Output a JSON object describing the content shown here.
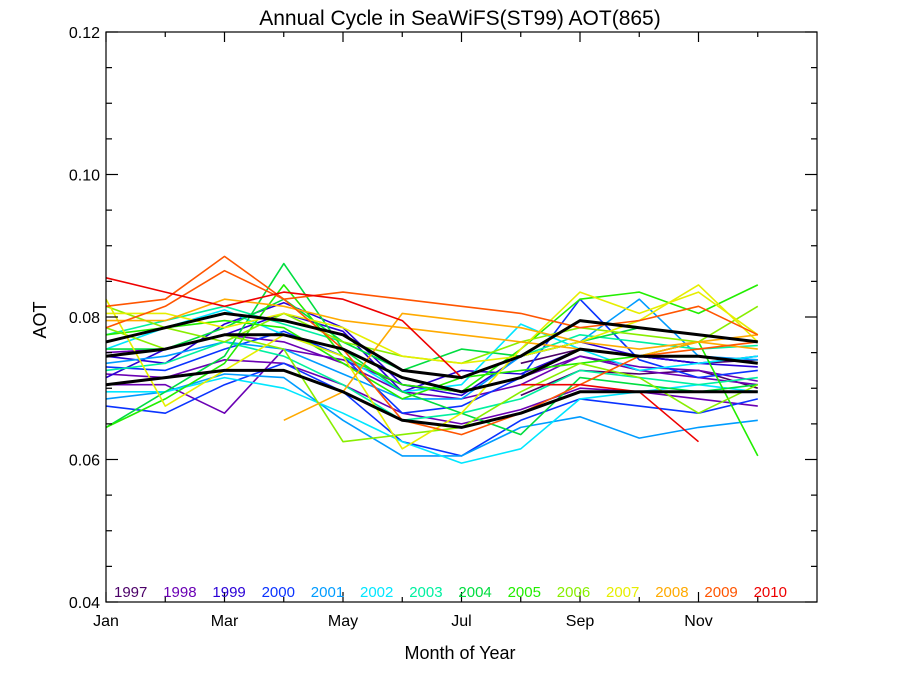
{
  "chart_data": {
    "type": "line",
    "title": "Annual Cycle in SeaWiFS(ST99) AOT(865)",
    "xlabel": "Month of Year",
    "ylabel": "AOT",
    "xlim": [
      1,
      13
    ],
    "ylim": [
      0.04,
      0.12
    ],
    "x_ticks": [
      {
        "x": 1,
        "label": "Jan"
      },
      {
        "x": 3,
        "label": "Mar"
      },
      {
        "x": 5,
        "label": "May"
      },
      {
        "x": 7,
        "label": "Jul"
      },
      {
        "x": 9,
        "label": "Sep"
      },
      {
        "x": 11,
        "label": "Nov"
      }
    ],
    "y_ticks": [
      {
        "y": 0.04,
        "label": "0.04"
      },
      {
        "y": 0.06,
        "label": "0.06"
      },
      {
        "y": 0.08,
        "label": "0.08"
      },
      {
        "y": 0.1,
        "label": "0.10"
      },
      {
        "y": 0.12,
        "label": "0.12"
      }
    ],
    "y_minor_step": 0.005,
    "grid": false,
    "legend_placement": "bottom, inside plot",
    "series": [
      {
        "name": "1997",
        "color": "#4b0068",
        "x": [
          8,
          9,
          10,
          11,
          12
        ],
        "values": [
          0.0735,
          0.0755,
          0.0745,
          0.0735,
          0.074
        ]
      },
      {
        "name": "1997",
        "color": "#4b0068",
        "x": [
          8,
          9,
          10,
          11,
          12
        ],
        "values": [
          0.069,
          0.0725,
          0.072,
          0.0725,
          0.07
        ]
      },
      {
        "name": "1998",
        "color": "#6a00b4",
        "x": [
          1,
          2,
          3,
          4,
          5,
          6,
          7,
          8,
          9,
          10,
          11,
          12
        ],
        "values": [
          0.0705,
          0.0705,
          0.0665,
          0.0755,
          0.074,
          0.0705,
          0.0695,
          0.0715,
          0.0745,
          0.0725,
          0.0715,
          0.0705
        ]
      },
      {
        "name": "1998",
        "color": "#6a00b4",
        "x": [
          1,
          2,
          3,
          4,
          5,
          6,
          7,
          8,
          9,
          10,
          11,
          12
        ],
        "values": [
          0.075,
          0.0755,
          0.0775,
          0.0765,
          0.0735,
          0.0695,
          0.0685,
          0.0705,
          0.0745,
          0.073,
          0.0725,
          0.071
        ]
      },
      {
        "name": "1998",
        "color": "#6a00b4",
        "x": [
          1,
          2,
          3,
          4,
          5,
          6,
          7,
          8,
          9,
          10,
          11,
          12
        ],
        "values": [
          0.072,
          0.0715,
          0.074,
          0.0735,
          0.0705,
          0.0665,
          0.065,
          0.067,
          0.07,
          0.0695,
          0.0685,
          0.0675
        ]
      },
      {
        "name": "1999",
        "color": "#2a00d6",
        "x": [
          1,
          2,
          3,
          4,
          5,
          6,
          7,
          8,
          9,
          10,
          11,
          12
        ],
        "values": [
          0.0715,
          0.0755,
          0.0775,
          0.0805,
          0.078,
          0.0695,
          0.0725,
          0.072,
          0.0755,
          0.0745,
          0.0735,
          0.0745
        ]
      },
      {
        "name": "1999",
        "color": "#2a00d6",
        "x": [
          1,
          2,
          3,
          4,
          5,
          6,
          7,
          8,
          9,
          10,
          11,
          12
        ],
        "values": [
          0.0745,
          0.0735,
          0.079,
          0.082,
          0.0785,
          0.0705,
          0.069,
          0.0745,
          0.0765,
          0.0745,
          0.0735,
          0.073
        ]
      },
      {
        "name": "2000",
        "color": "#0a33ff",
        "x": [
          1,
          2,
          3,
          4,
          5,
          6,
          7,
          8,
          9,
          10,
          11,
          12
        ],
        "values": [
          0.0675,
          0.0665,
          0.0705,
          0.0735,
          0.0695,
          0.0625,
          0.0605,
          0.0655,
          0.0685,
          0.0675,
          0.0665,
          0.0685
        ]
      },
      {
        "name": "2000",
        "color": "#0a33ff",
        "x": [
          1,
          2,
          3,
          4,
          5,
          6,
          7,
          8,
          9,
          10,
          11,
          12
        ],
        "values": [
          0.073,
          0.0725,
          0.0755,
          0.078,
          0.0745,
          0.0665,
          0.0675,
          0.0715,
          0.0825,
          0.074,
          0.0715,
          0.0725
        ]
      },
      {
        "name": "2001",
        "color": "#009cff",
        "x": [
          1,
          2,
          3,
          4,
          5,
          6,
          7,
          8,
          9,
          10,
          11,
          12
        ],
        "values": [
          0.0685,
          0.0695,
          0.072,
          0.0715,
          0.0655,
          0.0605,
          0.0605,
          0.0645,
          0.066,
          0.063,
          0.0645,
          0.0655
        ]
      },
      {
        "name": "2001",
        "color": "#009cff",
        "x": [
          1,
          2,
          3,
          4,
          5,
          6,
          7,
          8,
          9,
          10,
          11,
          12
        ],
        "values": [
          0.0735,
          0.0745,
          0.0765,
          0.0755,
          0.072,
          0.0685,
          0.0685,
          0.0745,
          0.0765,
          0.0825,
          0.0745,
          0.074
        ]
      },
      {
        "name": "2002",
        "color": "#00e6ff",
        "x": [
          1,
          2,
          3,
          4,
          5,
          6,
          7,
          8,
          9,
          10,
          11,
          12
        ],
        "values": [
          0.0695,
          0.0695,
          0.0715,
          0.07,
          0.0665,
          0.0625,
          0.0595,
          0.0615,
          0.0685,
          0.0695,
          0.0705,
          0.0695
        ]
      },
      {
        "name": "2002",
        "color": "#00e6ff",
        "x": [
          1,
          2,
          3,
          4,
          5,
          6,
          7,
          8,
          9,
          10,
          11,
          12
        ],
        "values": [
          0.0755,
          0.0785,
          0.081,
          0.0775,
          0.0745,
          0.0695,
          0.0705,
          0.079,
          0.0755,
          0.0725,
          0.0735,
          0.0745
        ]
      },
      {
        "name": "2003",
        "color": "#00f0a0",
        "x": [
          1,
          2,
          3,
          4,
          5,
          6,
          7,
          8,
          9,
          10,
          11,
          12
        ],
        "values": [
          0.0725,
          0.0735,
          0.0765,
          0.0745,
          0.0705,
          0.0655,
          0.0665,
          0.0685,
          0.0725,
          0.0715,
          0.0705,
          0.0715
        ]
      },
      {
        "name": "2003",
        "color": "#00f0a0",
        "x": [
          1,
          2,
          3,
          4,
          5,
          6,
          7,
          8,
          9,
          10,
          11,
          12
        ],
        "values": [
          0.0775,
          0.0795,
          0.0815,
          0.079,
          0.0765,
          0.0725,
          0.0715,
          0.0745,
          0.0775,
          0.0765,
          0.0755,
          0.076
        ]
      },
      {
        "name": "2004",
        "color": "#00dd40",
        "x": [
          1,
          2,
          3,
          4,
          5,
          6,
          7,
          8,
          9,
          10,
          11,
          12
        ],
        "values": [
          0.0645,
          0.0695,
          0.0745,
          0.0875,
          0.0755,
          0.0695,
          0.0665,
          0.0635,
          0.0715,
          0.0705,
          0.0695,
          0.0705
        ]
      },
      {
        "name": "2004",
        "color": "#00dd40",
        "x": [
          1,
          2,
          3,
          4,
          5,
          6,
          7,
          8,
          9,
          10,
          11,
          12
        ],
        "values": [
          0.0755,
          0.0755,
          0.0785,
          0.0825,
          0.0765,
          0.0725,
          0.0755,
          0.0745,
          0.0765,
          0.0785,
          0.0775,
          0.0765
        ]
      },
      {
        "name": "2005",
        "color": "#22ee00",
        "x": [
          1,
          2,
          3,
          4,
          5,
          6,
          7,
          8,
          9,
          10,
          11,
          12
        ],
        "values": [
          0.0645,
          0.0685,
          0.0735,
          0.0845,
          0.0745,
          0.0705,
          0.0695,
          0.0755,
          0.0825,
          0.0835,
          0.0805,
          0.0845
        ]
      },
      {
        "name": "2005",
        "color": "#22ee00",
        "x": [
          1,
          2,
          3,
          4,
          5,
          6,
          7,
          8,
          9,
          10,
          11,
          12
        ],
        "values": [
          0.0775,
          0.0785,
          0.0795,
          0.0785,
          0.0735,
          0.0685,
          0.0715,
          0.0725,
          0.0735,
          0.0745,
          0.0765,
          0.0605
        ]
      },
      {
        "name": "2006",
        "color": "#88ee00",
        "x": [
          1,
          2,
          3,
          4,
          5,
          6,
          7,
          8,
          9,
          10,
          11,
          12
        ],
        "values": [
          0.0785,
          0.0755,
          0.0775,
          0.0755,
          0.0625,
          0.0635,
          0.0645,
          0.0695,
          0.0735,
          0.0715,
          0.0665,
          0.0705
        ]
      },
      {
        "name": "2006",
        "color": "#88ee00",
        "x": [
          1,
          2,
          3,
          4,
          5,
          6,
          7,
          8,
          9,
          10,
          11,
          12
        ],
        "values": [
          0.0815,
          0.0785,
          0.0765,
          0.0805,
          0.0765,
          0.0745,
          0.0735,
          0.0765,
          0.0785,
          0.0775,
          0.0765,
          0.0815
        ]
      },
      {
        "name": "2007",
        "color": "#e6ee00",
        "x": [
          1,
          2,
          3,
          4,
          5,
          6,
          7,
          8,
          9,
          10,
          11,
          12
        ],
        "values": [
          0.0825,
          0.0675,
          0.0725,
          0.0775,
          0.0745,
          0.0615,
          0.0665,
          0.0755,
          0.0835,
          0.0805,
          0.0835,
          0.0775
        ]
      },
      {
        "name": "2007",
        "color": "#e6ee00",
        "x": [
          1,
          2,
          3,
          4,
          5,
          6,
          7,
          8,
          9,
          10,
          11,
          12
        ],
        "values": [
          0.0805,
          0.0805,
          0.0785,
          0.0805,
          0.0785,
          0.0745,
          0.0735,
          0.0745,
          0.0765,
          0.0795,
          0.0845,
          0.0765
        ]
      },
      {
        "name": "2008",
        "color": "#ffaa00",
        "x": [
          4,
          5,
          6,
          7,
          8,
          9,
          10,
          11,
          12
        ],
        "values": [
          0.0655,
          0.0695,
          0.0805,
          0.0795,
          0.0785,
          0.0765,
          0.0755,
          0.0765,
          0.0755
        ]
      },
      {
        "name": "2008",
        "color": "#ffaa00",
        "x": [
          1,
          2,
          3,
          4,
          5,
          6,
          7,
          8,
          9,
          10,
          11,
          12
        ],
        "values": [
          0.0795,
          0.0795,
          0.0825,
          0.0815,
          0.0795,
          0.0785,
          0.0775,
          0.0765,
          0.0755,
          0.0745,
          0.0765,
          0.0775
        ]
      },
      {
        "name": "2009",
        "color": "#ff5500",
        "x": [
          1,
          2,
          3,
          4,
          5,
          6,
          7,
          8,
          9,
          10,
          11,
          12
        ],
        "values": [
          0.0815,
          0.0825,
          0.0885,
          0.0825,
          0.0835,
          0.0825,
          0.0815,
          0.0805,
          0.0785,
          0.0795,
          0.0815,
          0.0775
        ]
      },
      {
        "name": "2009",
        "color": "#ff5500",
        "x": [
          1,
          2,
          3,
          4,
          5,
          6,
          7,
          8,
          9,
          10,
          11,
          12
        ],
        "values": [
          0.0785,
          0.0815,
          0.0865,
          0.0825,
          0.0755,
          0.0655,
          0.0635,
          0.0665,
          0.0705,
          0.0745,
          0.0755,
          0.0765
        ]
      },
      {
        "name": "2010",
        "color": "#ee0000",
        "x": [
          1,
          2,
          3,
          4,
          5,
          6,
          7
        ],
        "values": [
          0.0855,
          0.0835,
          0.0815,
          0.0835,
          0.0825,
          0.0795,
          0.0715
        ]
      },
      {
        "name": "2010",
        "color": "#ee0000",
        "x": [
          8,
          9,
          10,
          11
        ],
        "values": [
          0.0705,
          0.0705,
          0.0695,
          0.0625
        ]
      },
      {
        "name": "",
        "color": "#000000",
        "width": 3,
        "x": [
          1,
          2,
          3,
          4,
          5,
          6,
          7,
          8,
          9,
          10,
          11,
          12
        ],
        "values": [
          0.0765,
          0.0785,
          0.0805,
          0.0795,
          0.0775,
          0.0725,
          0.0715,
          0.0745,
          0.0795,
          0.0785,
          0.0775,
          0.0765
        ]
      },
      {
        "name": "",
        "color": "#000000",
        "width": 3,
        "x": [
          1,
          2,
          3,
          4,
          5,
          6,
          7,
          8,
          9,
          10,
          11,
          12
        ],
        "values": [
          0.0745,
          0.0755,
          0.0775,
          0.0775,
          0.0755,
          0.0715,
          0.0695,
          0.0715,
          0.0755,
          0.0745,
          0.0745,
          0.0735
        ]
      },
      {
        "name": "",
        "color": "#000000",
        "width": 3,
        "x": [
          1,
          2,
          3,
          4,
          5,
          6,
          7,
          8,
          9,
          10,
          11,
          12
        ],
        "values": [
          0.0705,
          0.0715,
          0.0725,
          0.0725,
          0.0695,
          0.0655,
          0.0645,
          0.0665,
          0.0695,
          0.0695,
          0.0695,
          0.0695
        ]
      }
    ],
    "legend": [
      {
        "label": "1997",
        "color": "#4b0068"
      },
      {
        "label": "1998",
        "color": "#6a00b4"
      },
      {
        "label": "1999",
        "color": "#2a00d6"
      },
      {
        "label": "2000",
        "color": "#0a33ff"
      },
      {
        "label": "2001",
        "color": "#009cff"
      },
      {
        "label": "2002",
        "color": "#00e6ff"
      },
      {
        "label": "2003",
        "color": "#00f0a0"
      },
      {
        "label": "2004",
        "color": "#00dd40"
      },
      {
        "label": "2005",
        "color": "#22ee00"
      },
      {
        "label": "2006",
        "color": "#88ee00"
      },
      {
        "label": "2007",
        "color": "#e6ee00"
      },
      {
        "label": "2008",
        "color": "#ffaa00"
      },
      {
        "label": "2009",
        "color": "#ff5500"
      },
      {
        "label": "2010",
        "color": "#ee0000"
      }
    ]
  }
}
